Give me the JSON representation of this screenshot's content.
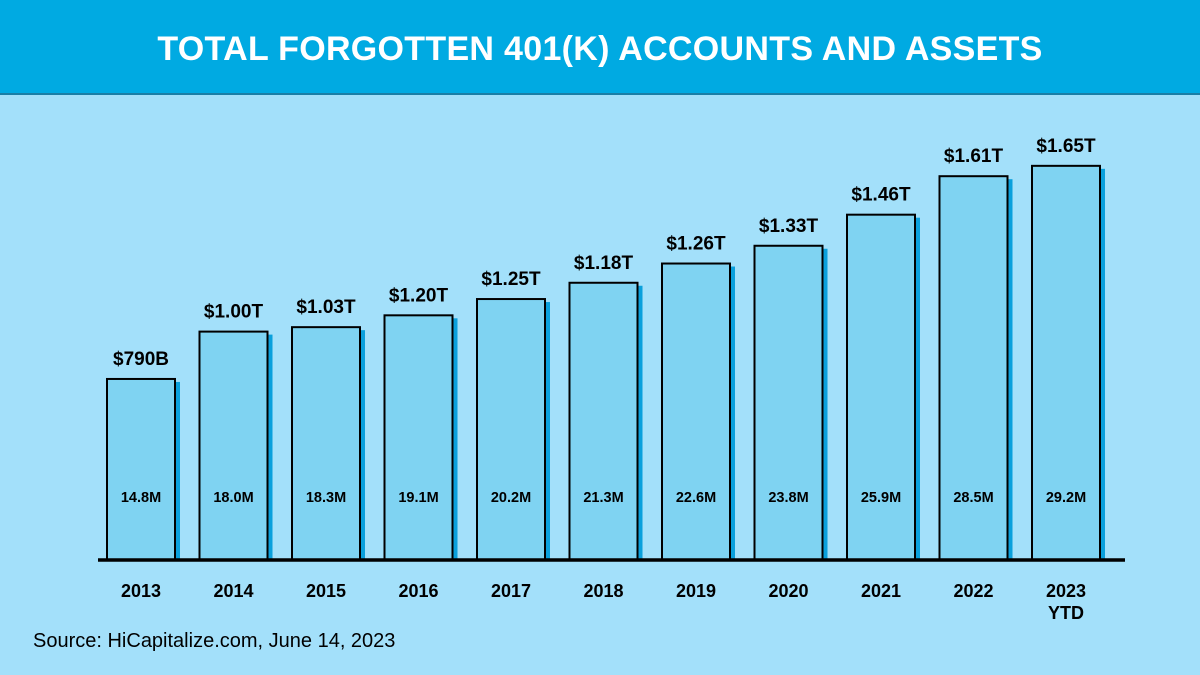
{
  "title": "TOTAL FORGOTTEN 401(K) ACCOUNTS AND ASSETS",
  "source": "Source: HiCapitalize.com, June 14, 2023",
  "colors": {
    "header": "#00aae2",
    "background": "#a3e0fa",
    "bar": "#7fd3f2",
    "bar_shadow": "#0aa0dc",
    "axis": "#000000"
  },
  "chart_data": {
    "type": "bar",
    "categories": [
      "2013",
      "2014",
      "2015",
      "2016",
      "2017",
      "2018",
      "2019",
      "2020",
      "2021",
      "2022",
      "2023\nYTD"
    ],
    "series": [
      {
        "values": [
          14.8,
          18.0,
          18.3,
          19.1,
          20.2,
          21.3,
          22.6,
          23.8,
          25.9,
          28.5,
          29.2
        ],
        "unit": "M"
      }
    ],
    "top_labels": [
      "$790B",
      "$1.00T",
      "$1.03T",
      "$1.20T",
      "$1.25T",
      "$1.18T",
      "$1.26T",
      "$1.33T",
      "$1.46T",
      "$1.61T",
      "$1.65T"
    ],
    "inner_labels": [
      "14.8M",
      "18.0M",
      "18.3M",
      "19.1M",
      "20.2M",
      "21.3M",
      "22.6M",
      "23.8M",
      "25.9M",
      "28.5M",
      "29.2M"
    ],
    "xlabel": "",
    "ylabel": "",
    "grid": false,
    "legend": "none"
  }
}
